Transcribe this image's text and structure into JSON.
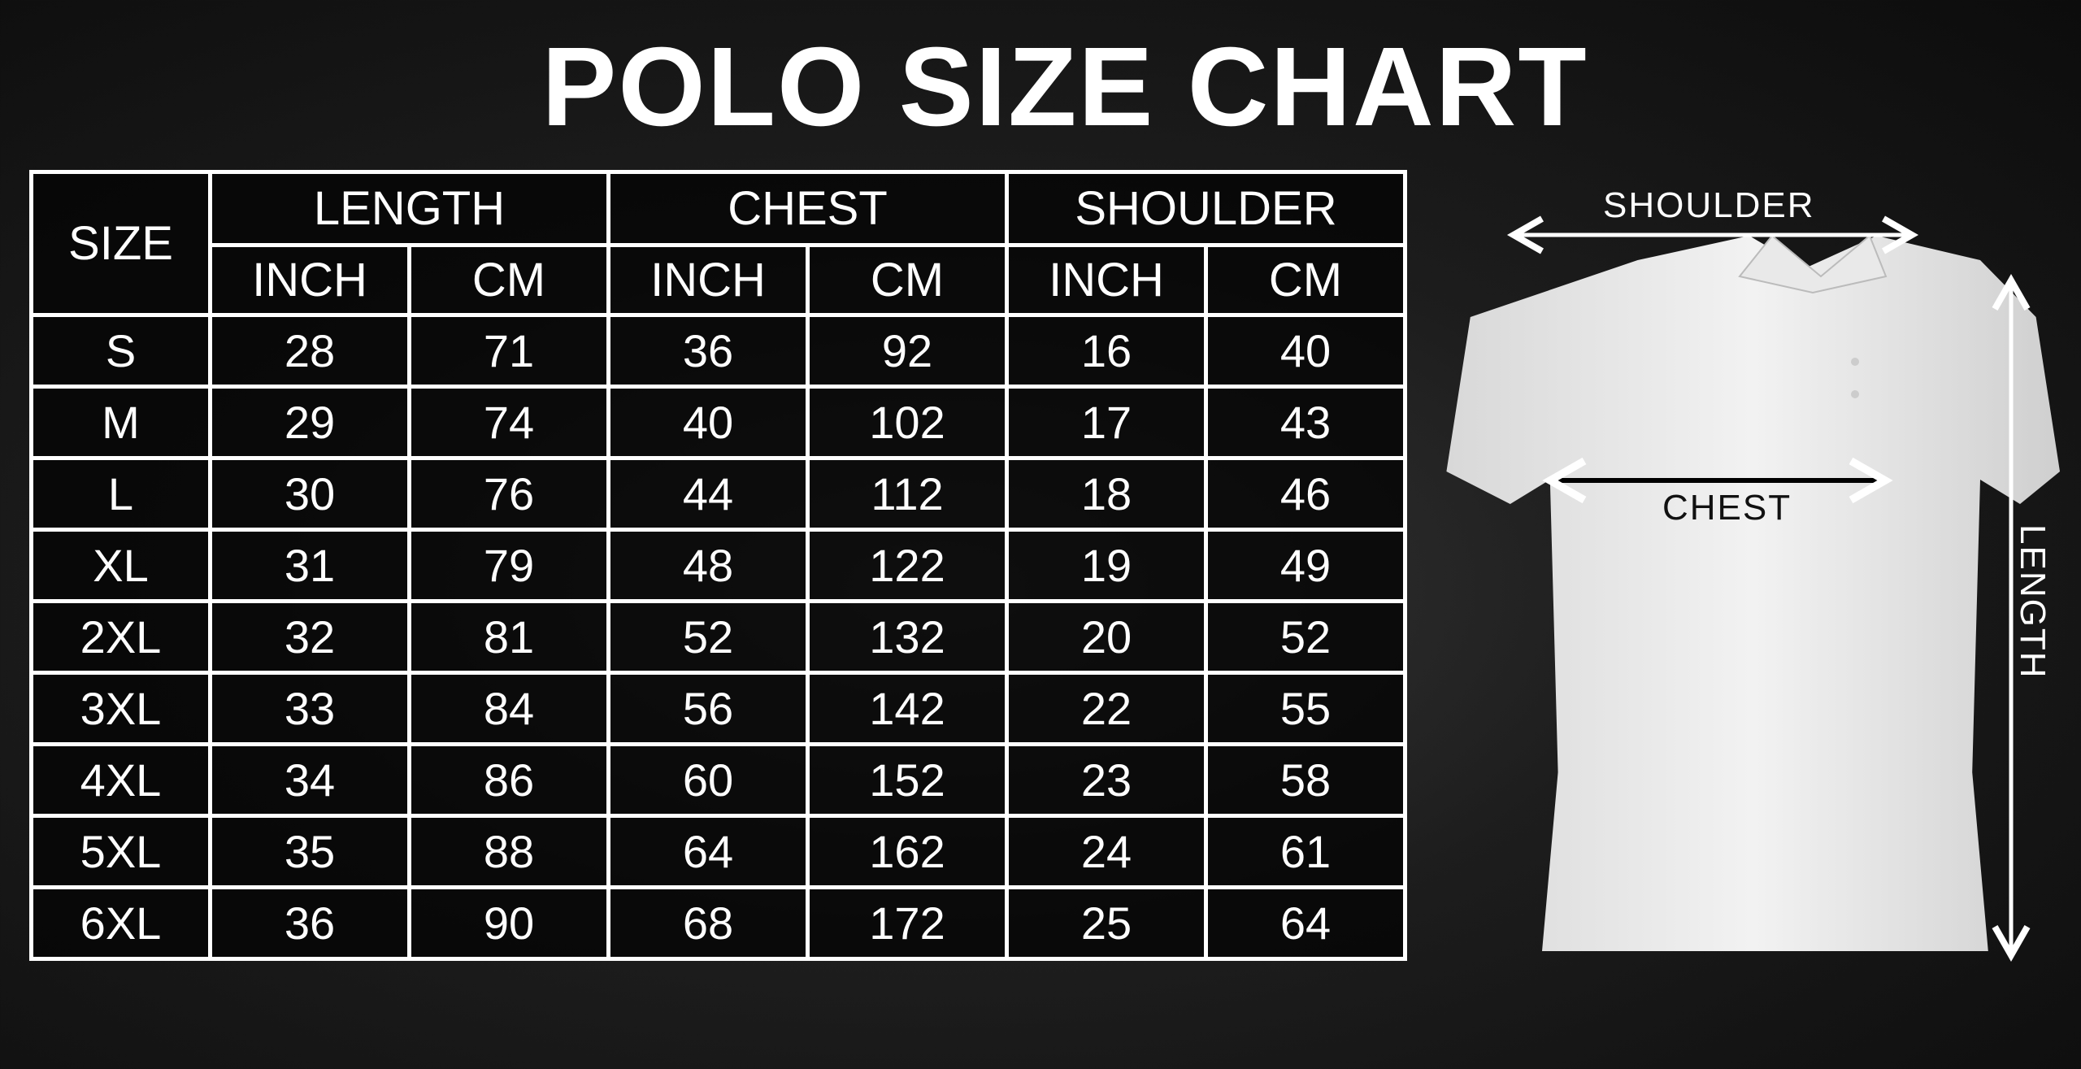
{
  "title": "POLO SIZE CHART",
  "table": {
    "size_header": "SIZE",
    "groups": [
      "LENGTH",
      "CHEST",
      "SHOULDER"
    ],
    "units": [
      "INCH",
      "CM",
      "INCH",
      "CM",
      "INCH",
      "CM"
    ],
    "rows": [
      [
        "S",
        "28",
        "71",
        "36",
        "92",
        "16",
        "40"
      ],
      [
        "M",
        "29",
        "74",
        "40",
        "102",
        "17",
        "43"
      ],
      [
        "L",
        "30",
        "76",
        "44",
        "112",
        "18",
        "46"
      ],
      [
        "XL",
        "31",
        "79",
        "48",
        "122",
        "19",
        "49"
      ],
      [
        "2XL",
        "32",
        "81",
        "52",
        "132",
        "20",
        "52"
      ],
      [
        "3XL",
        "33",
        "84",
        "56",
        "142",
        "22",
        "55"
      ],
      [
        "4XL",
        "34",
        "86",
        "60",
        "152",
        "23",
        "58"
      ],
      [
        "5XL",
        "35",
        "88",
        "64",
        "162",
        "24",
        "61"
      ],
      [
        "6XL",
        "36",
        "90",
        "68",
        "172",
        "25",
        "64"
      ]
    ]
  },
  "diagram": {
    "shoulder_label": "SHOULDER",
    "chest_label": "CHEST",
    "length_label": "LENGTH"
  }
}
